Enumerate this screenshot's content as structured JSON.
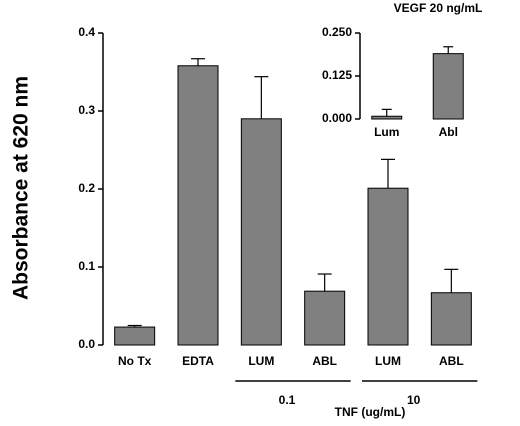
{
  "chart_data": [
    {
      "type": "bar",
      "ylabel": "Absorbance at 620 nm",
      "xlabel": "TNF (ug/mL)",
      "ylim": [
        0,
        0.4
      ],
      "yticks": [
        "0.0",
        "0.1",
        "0.2",
        "0.3",
        "0.4"
      ],
      "categories": [
        "No Tx",
        "EDTA",
        "LUM",
        "ABL",
        "LUM",
        "ABL"
      ],
      "values": [
        0.023,
        0.358,
        0.29,
        0.069,
        0.201,
        0.067
      ],
      "errors": [
        0.002,
        0.009,
        0.054,
        0.022,
        0.037,
        0.03
      ],
      "groups": [
        {
          "label": "0.1",
          "categories": [
            2,
            3
          ]
        },
        {
          "label": "10",
          "categories": [
            4,
            5
          ]
        }
      ],
      "bar_color": "#808080"
    },
    {
      "type": "bar",
      "title": "VEGF 20 ng/mL",
      "ylim": [
        0,
        0.25
      ],
      "yticks": [
        "0.000",
        "0.125",
        "0.250"
      ],
      "categories": [
        "Lum",
        "Abl"
      ],
      "values": [
        0.008,
        0.19
      ],
      "errors": [
        0.02,
        0.02
      ],
      "bar_color": "#808080"
    }
  ]
}
